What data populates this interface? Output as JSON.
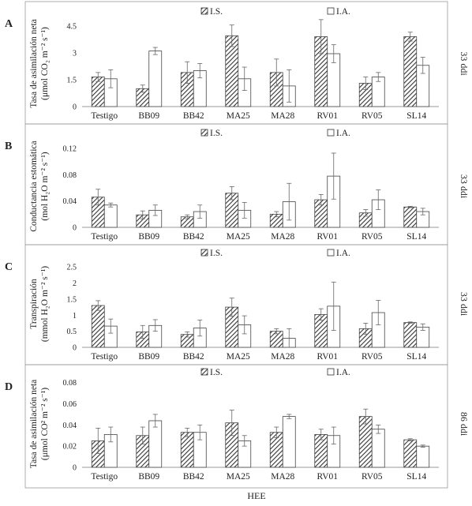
{
  "xlabel": "HEE",
  "chart_data": [
    {
      "type": "bar",
      "panel_letter": "A",
      "ylabel_lines": [
        "Tasa de asimilación neta",
        "(μmol CO₂ m⁻² s⁻¹)"
      ],
      "right_label": "33 ddi",
      "categories": [
        "Testigo",
        "BB09",
        "BB42",
        "MA25",
        "MA28",
        "RV01",
        "RV05",
        "SL14"
      ],
      "yticks": [
        "0",
        "1.5",
        "3",
        "4.5"
      ],
      "ylim": [
        0,
        4.8
      ],
      "series": [
        {
          "name": "I.S.",
          "values": [
            1.65,
            1.0,
            1.9,
            3.95,
            1.9,
            3.9,
            1.3,
            3.9
          ],
          "errors": [
            0.25,
            0.2,
            0.6,
            0.6,
            0.75,
            0.95,
            0.35,
            0.25
          ]
        },
        {
          "name": "I.A.",
          "values": [
            1.55,
            3.1,
            2.0,
            1.55,
            1.15,
            2.95,
            1.65,
            2.3
          ],
          "errors": [
            0.5,
            0.2,
            0.4,
            0.65,
            0.9,
            0.5,
            0.25,
            0.45
          ]
        }
      ],
      "legend": "top-center"
    },
    {
      "type": "bar",
      "panel_letter": "B",
      "ylabel_lines": [
        "Conductancia estomática",
        "(mol H₂O m⁻² s⁻¹)"
      ],
      "right_label": "33 ddi",
      "categories": [
        "Testigo",
        "BB09",
        "BB42",
        "MA25",
        "MA28",
        "RV01",
        "RV05",
        "SL14"
      ],
      "yticks": [
        "0",
        "0.04",
        "0.08",
        "0.12"
      ],
      "ylim": [
        0,
        0.125
      ],
      "series": [
        {
          "name": "I.S.",
          "values": [
            0.046,
            0.019,
            0.016,
            0.052,
            0.02,
            0.042,
            0.022,
            0.031
          ],
          "errors": [
            0.012,
            0.006,
            0.003,
            0.01,
            0.004,
            0.008,
            0.005,
            0.001
          ]
        },
        {
          "name": "I.A.",
          "values": [
            0.034,
            0.026,
            0.024,
            0.026,
            0.039,
            0.078,
            0.042,
            0.024
          ],
          "errors": [
            0.003,
            0.008,
            0.01,
            0.012,
            0.028,
            0.035,
            0.015,
            0.005
          ]
        }
      ],
      "legend": "top-center"
    },
    {
      "type": "bar",
      "panel_letter": "C",
      "ylabel_lines": [
        "Transpiración",
        "(mmol H₂O m⁻² s⁻¹)"
      ],
      "right_label": "33 ddi",
      "categories": [
        "Testigo",
        "BB09",
        "BB42",
        "MA25",
        "MA28",
        "RV01",
        "RV05",
        "SL14"
      ],
      "yticks": [
        "0",
        "0.5",
        "1",
        "1.5",
        "2",
        "2.5"
      ],
      "ylim": [
        0,
        2.7
      ],
      "series": [
        {
          "name": "I.S.",
          "values": [
            1.3,
            0.48,
            0.4,
            1.25,
            0.5,
            1.02,
            0.58,
            0.77
          ],
          "errors": [
            0.15,
            0.2,
            0.08,
            0.28,
            0.08,
            0.18,
            0.17,
            0.02
          ]
        },
        {
          "name": "I.A.",
          "values": [
            0.66,
            0.68,
            0.6,
            0.7,
            0.28,
            1.28,
            1.08,
            0.63
          ],
          "errors": [
            0.22,
            0.18,
            0.25,
            0.28,
            0.3,
            0.75,
            0.38,
            0.1
          ]
        }
      ],
      "legend": "top-center"
    },
    {
      "type": "bar",
      "panel_letter": "D",
      "ylabel_lines": [
        "Tasa de asimilación neta",
        "(μmol CO² m⁻² s⁻¹)"
      ],
      "right_label": "86 ddi",
      "categories": [
        "Testigo",
        "BB09",
        "BB42",
        "MA25",
        "MA28",
        "RV01",
        "RV05",
        "SL14"
      ],
      "yticks": [
        "0",
        "0.02",
        "0.04",
        "0.06",
        "0.08"
      ],
      "ylim": [
        0,
        0.082
      ],
      "series": [
        {
          "name": "I.S.",
          "values": [
            0.025,
            0.03,
            0.033,
            0.042,
            0.033,
            0.031,
            0.048,
            0.026
          ],
          "errors": [
            0.012,
            0.008,
            0.004,
            0.012,
            0.005,
            0.005,
            0.007,
            0.001
          ]
        },
        {
          "name": "I.A.",
          "values": [
            0.031,
            0.044,
            0.033,
            0.025,
            0.048,
            0.03,
            0.036,
            0.02
          ],
          "errors": [
            0.007,
            0.006,
            0.007,
            0.005,
            0.002,
            0.008,
            0.004,
            0.001
          ]
        }
      ],
      "legend": "top-center"
    }
  ]
}
